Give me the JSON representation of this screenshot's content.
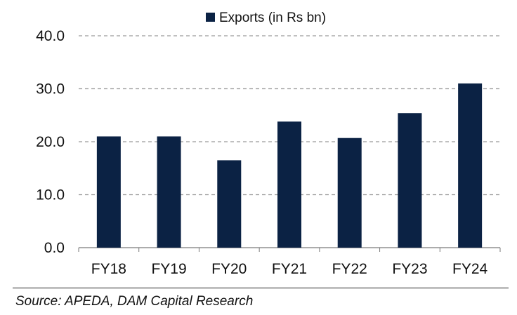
{
  "chart_data": {
    "type": "bar",
    "categories": [
      "FY18",
      "FY19",
      "FY20",
      "FY21",
      "FY22",
      "FY23",
      "FY24"
    ],
    "series": [
      {
        "name": "Exports (in Rs bn)",
        "values": [
          21.0,
          21.0,
          16.5,
          23.8,
          20.7,
          25.4,
          31.0
        ],
        "color": "#0b2244"
      }
    ],
    "ylim": [
      0,
      40
    ],
    "yticks": [
      "0.0",
      "10.0",
      "20.0",
      "30.0",
      "40.0"
    ],
    "grid": true,
    "legend_position": "top-center"
  },
  "source": "Source: APEDA, DAM Capital Research"
}
